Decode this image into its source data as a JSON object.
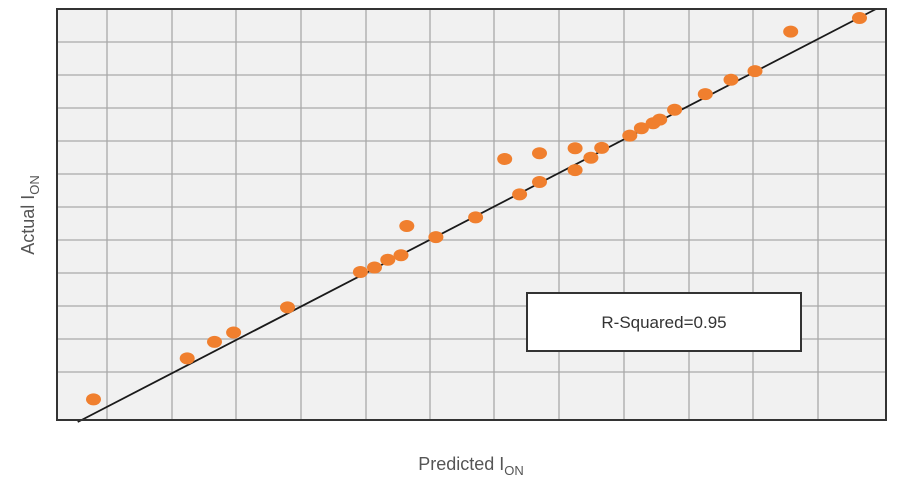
{
  "chart_data": {
    "type": "scatter",
    "title": "",
    "xlabel": {
      "main": "Predicted I",
      "sub": "ON"
    },
    "ylabel": {
      "main": "Actual I",
      "sub": "ON"
    },
    "xlim": [
      0,
      100
    ],
    "ylim": [
      0,
      100
    ],
    "grid": true,
    "tick_labels_shown": false,
    "annotation": "R-Squared=0.95",
    "annotation_placement": "lower-right",
    "fit_line": {
      "x": [
        2.5,
        100
      ],
      "y": [
        -2,
        100
      ]
    },
    "series": [
      {
        "values": [
          {
            "x": 4.4,
            "y": 5.0
          },
          {
            "x": 15.7,
            "y": 15.0
          },
          {
            "x": 19.0,
            "y": 19.0
          },
          {
            "x": 21.3,
            "y": 21.3
          },
          {
            "x": 27.8,
            "y": 27.4
          },
          {
            "x": 36.6,
            "y": 36.0
          },
          {
            "x": 38.3,
            "y": 37.1
          },
          {
            "x": 39.9,
            "y": 39.0
          },
          {
            "x": 41.5,
            "y": 40.1
          },
          {
            "x": 42.2,
            "y": 47.2
          },
          {
            "x": 45.7,
            "y": 44.5
          },
          {
            "x": 50.5,
            "y": 49.3
          },
          {
            "x": 54.0,
            "y": 63.5
          },
          {
            "x": 55.8,
            "y": 54.9
          },
          {
            "x": 58.2,
            "y": 57.9
          },
          {
            "x": 58.2,
            "y": 64.9
          },
          {
            "x": 62.5,
            "y": 60.8
          },
          {
            "x": 62.5,
            "y": 66.1
          },
          {
            "x": 64.4,
            "y": 63.8
          },
          {
            "x": 65.7,
            "y": 66.2
          },
          {
            "x": 69.1,
            "y": 69.2
          },
          {
            "x": 70.5,
            "y": 71.0
          },
          {
            "x": 71.9,
            "y": 72.2
          },
          {
            "x": 72.7,
            "y": 73.1
          },
          {
            "x": 74.5,
            "y": 75.5
          },
          {
            "x": 78.2,
            "y": 79.3
          },
          {
            "x": 81.3,
            "y": 82.8
          },
          {
            "x": 84.2,
            "y": 84.9
          },
          {
            "x": 88.5,
            "y": 94.5
          },
          {
            "x": 96.8,
            "y": 97.8
          }
        ]
      }
    ]
  },
  "colors": {
    "point": "#f07f2e",
    "grid": "#a9a9a9",
    "plot_bg": "#f1f1f1",
    "frame": "#333333",
    "fit_line": "#1a1a1a",
    "text": "#555555"
  }
}
